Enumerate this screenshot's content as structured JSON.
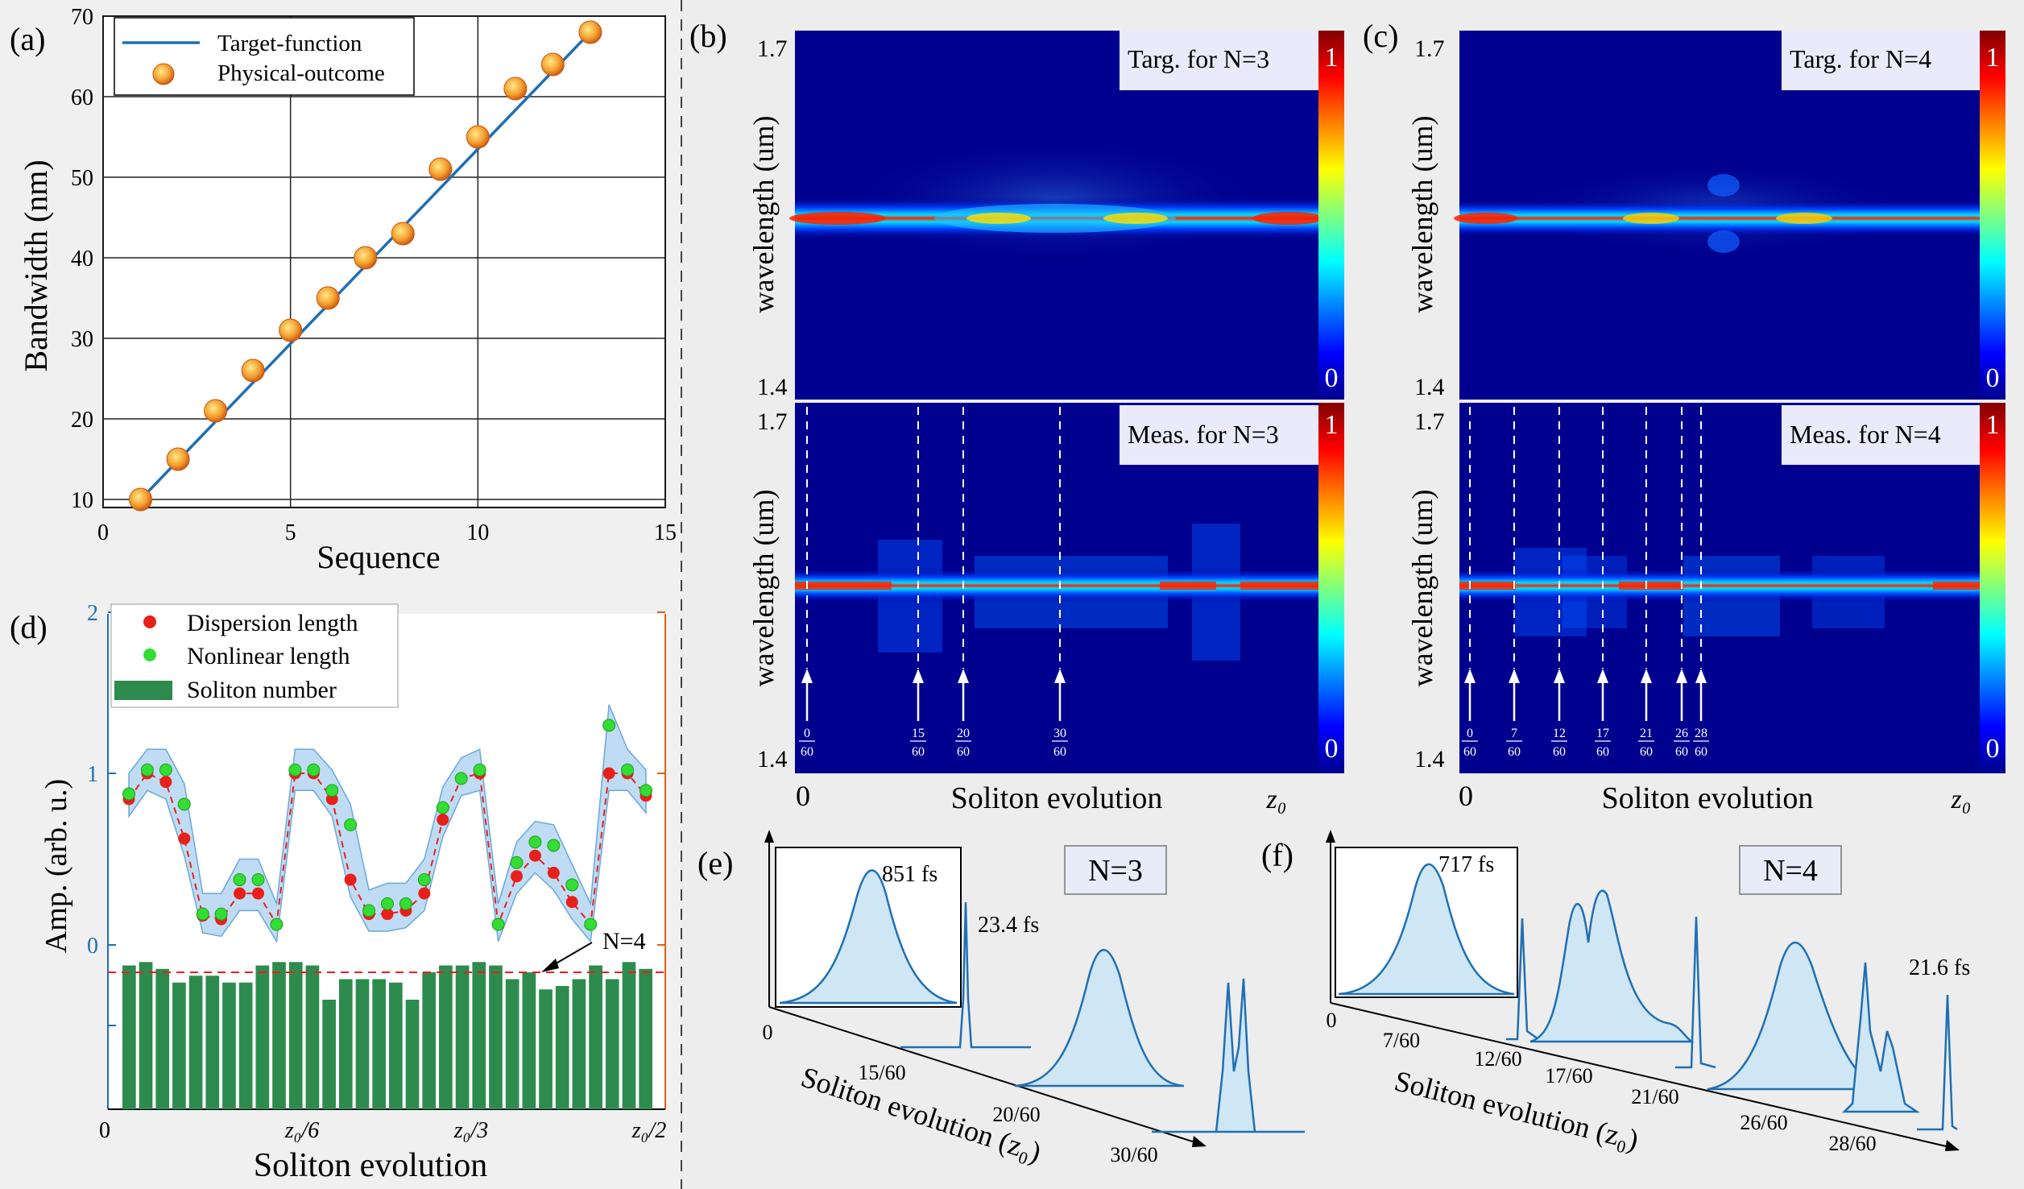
{
  "panel_a": {
    "label": "(a)",
    "legend": {
      "target": "Target-function",
      "physical": "Physical-outcome"
    }
  },
  "panel_b": {
    "label": "(b)",
    "title_top": "Targ. for N=3",
    "title_bottom": "Meas. for N=3",
    "markers": [
      "0/60",
      "15/60",
      "20/60",
      "30/60"
    ]
  },
  "panel_c": {
    "label": "(c)",
    "title_top": "Targ. for N=4",
    "title_bottom": "Meas. for N=4",
    "markers": [
      "0/60",
      "7/60",
      "12/60",
      "17/60",
      "21/60",
      "26/60",
      "28/60"
    ]
  },
  "panel_d": {
    "label": "(d)",
    "legend": {
      "dispersion": "Dispersion length",
      "nonlinear": "Nonlinear length",
      "soliton": "Soliton number"
    },
    "annotation": "N=4"
  },
  "panel_e": {
    "label": "(e)",
    "badge": "N=3",
    "inset_duration": "851 fs",
    "peak_duration": "23.4 fs",
    "axis_title": "Soliton evolution (z₀)",
    "ticks": [
      "0",
      "15/60",
      "20/60",
      "30/60"
    ]
  },
  "panel_f": {
    "label": "(f)",
    "badge": "N=4",
    "inset_duration": "717 fs",
    "peak_duration": "21.6 fs",
    "axis_title": "Soliton evolution (z₀)",
    "ticks": [
      "0",
      "7/60",
      "12/60",
      "17/60",
      "21/60",
      "26/60",
      "28/60"
    ]
  },
  "heatmap_axes": {
    "ylabel": "wavelength (um)",
    "ytop": "1.7",
    "ybottom": "1.4",
    "xlabel": "Soliton evolution",
    "xstart": "0",
    "xend": "z₀",
    "cbar_max": "1",
    "cbar_min": "0"
  },
  "colors": {
    "line": "#1f6fb4",
    "accent": "#e06010",
    "bar": "#2e8b4e",
    "red": "#e8201a",
    "green": "#33dd33"
  },
  "chart_data": [
    {
      "panel": "a",
      "type": "line",
      "title": "",
      "xlabel": "Sequence",
      "ylabel": "Bandwidth (nm)",
      "xlim": [
        0,
        15
      ],
      "ylim": [
        9,
        70
      ],
      "xticks": [
        0,
        5,
        10,
        15
      ],
      "yticks": [
        10,
        20,
        30,
        40,
        50,
        60,
        70
      ],
      "series": [
        {
          "name": "Target-function",
          "x": [
            1,
            13
          ],
          "values": [
            10,
            68
          ]
        },
        {
          "name": "Physical-outcome",
          "x": [
            1,
            2,
            3,
            4,
            5,
            6,
            7,
            8,
            9,
            10,
            11,
            12,
            13
          ],
          "values": [
            10,
            15,
            21,
            26,
            31,
            35,
            40,
            43,
            51,
            55,
            61,
            64,
            68
          ]
        }
      ]
    },
    {
      "panel": "d",
      "type": "scatter",
      "title": "",
      "xlabel": "Soliton evolution",
      "ylabel": "Amp. (arb. u.)",
      "ylim": [
        -1,
        2
      ],
      "xtick_labels": [
        "0",
        "z₀/6",
        "z₀/3",
        "z₀/2"
      ],
      "xtick_positions": [
        0,
        5,
        10,
        15
      ],
      "ytick_labels": [
        "0",
        "1",
        "2"
      ],
      "series": [
        {
          "name": "Dispersion length",
          "values": [
            0.85,
            1.0,
            0.95,
            0.62,
            0.17,
            0.15,
            0.3,
            0.3,
            0.12,
            1.0,
            1.0,
            0.85,
            0.38,
            0.18,
            0.18,
            0.2,
            0.3,
            0.73,
            0.97,
            1.0,
            0.12,
            0.4,
            0.52,
            0.42,
            0.25,
            0.12,
            1.0,
            1.0,
            0.87
          ]
        },
        {
          "name": "Nonlinear length",
          "values": [
            0.88,
            1.02,
            1.02,
            0.82,
            0.18,
            0.18,
            0.38,
            0.38,
            0.12,
            1.02,
            1.02,
            0.9,
            0.7,
            0.2,
            0.24,
            0.24,
            0.38,
            0.8,
            0.97,
            1.02,
            0.12,
            0.48,
            0.6,
            0.58,
            0.35,
            0.12,
            1.28,
            1.02,
            0.9
          ]
        },
        {
          "name": "Soliton number",
          "type": "bar",
          "values": [
            4.2,
            4.3,
            4.1,
            3.7,
            3.9,
            3.9,
            3.7,
            3.7,
            4.2,
            4.3,
            4.3,
            4.2,
            3.2,
            3.8,
            3.8,
            3.8,
            3.7,
            3.2,
            4.0,
            4.2,
            4.2,
            4.3,
            4.2,
            3.8,
            4.0,
            3.5,
            3.6,
            3.8,
            4.2,
            3.8,
            4.3,
            4.1
          ]
        }
      ],
      "reference_line": 4
    },
    {
      "panel": "b",
      "type": "heatmap",
      "ylim": [
        1.4,
        1.7
      ],
      "zlim": [
        0,
        1
      ],
      "rows": [
        "target",
        "measured"
      ]
    },
    {
      "panel": "c",
      "type": "heatmap",
      "ylim": [
        1.4,
        1.7
      ],
      "zlim": [
        0,
        1
      ],
      "rows": [
        "target",
        "measured"
      ]
    }
  ]
}
